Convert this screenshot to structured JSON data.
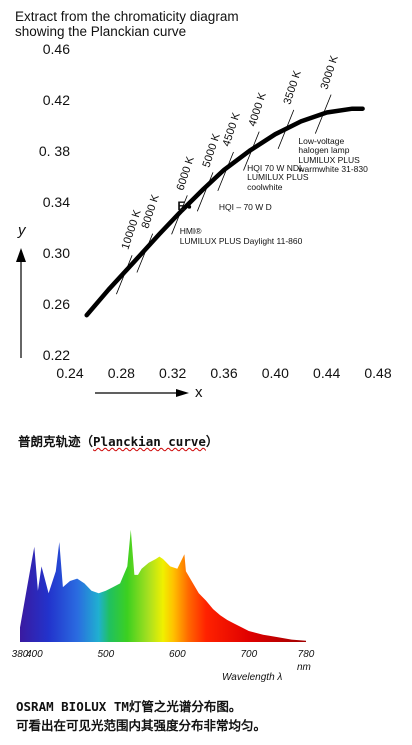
{
  "chart_data": [
    {
      "type": "line",
      "title": "Extract from the chromaticity diagram\nshowing the Planckian curve",
      "xlabel": "x",
      "ylabel": "y",
      "xlim": [
        0.24,
        0.48
      ],
      "ylim": [
        0.22,
        0.46
      ],
      "xticks": [
        "0.24",
        "0.28",
        "0.32",
        "0.36",
        "0.40",
        "0.44",
        "0.48"
      ],
      "yticks": [
        "0.46",
        "0.42",
        "0. 38",
        "0.34",
        "0.30",
        "0.26",
        "0.22"
      ],
      "series": [
        {
          "values_xy": [
            [
              0.253,
              0.252
            ],
            [
              0.27,
              0.272
            ],
            [
              0.29,
              0.294
            ],
            [
              0.31,
              0.316
            ],
            [
              0.327,
              0.334
            ],
            [
              0.344,
              0.351
            ],
            [
              0.36,
              0.366
            ],
            [
              0.38,
              0.381
            ],
            [
              0.4,
              0.394
            ],
            [
              0.42,
              0.404
            ],
            [
              0.44,
              0.411
            ],
            [
              0.46,
              0.414
            ],
            [
              0.468,
              0.414
            ]
          ]
        }
      ],
      "cct_markers": [
        {
          "label": "10000 K",
          "x": 0.282,
          "y": 0.283
        },
        {
          "label": "8000 K",
          "x": 0.298,
          "y": 0.3
        },
        {
          "label": "6000 K",
          "x": 0.325,
          "y": 0.33
        },
        {
          "label": "5000 K",
          "x": 0.345,
          "y": 0.348
        },
        {
          "label": "4500 K",
          "x": 0.361,
          "y": 0.364
        },
        {
          "label": "4000 K",
          "x": 0.381,
          "y": 0.38
        },
        {
          "label": "3500 K",
          "x": 0.408,
          "y": 0.397
        },
        {
          "label": "3000 K",
          "x": 0.437,
          "y": 0.409
        }
      ],
      "annotations": [
        {
          "text": "E",
          "x": 0.333,
          "y": 0.337
        },
        {
          "text": "HMI®\nLUMILUX PLUS Daylight 11-860",
          "x": 0.3255,
          "y": 0.321
        },
        {
          "text": "HQI – 70 W D",
          "x": 0.356,
          "y": 0.34
        },
        {
          "text": "HQI 70 W NDL\nLUMILUX PLUS\ncoolwhite",
          "x": 0.378,
          "y": 0.371
        },
        {
          "text": "Low-voltage\nhalogen lamp\nLUMILUX PLUS\nwarmwhite 31-830",
          "x": 0.418,
          "y": 0.392
        }
      ]
    },
    {
      "type": "area",
      "xlabel": "Wavelength λ",
      "xunit": "nm",
      "xlim": [
        380,
        780
      ],
      "xticks": [
        "380",
        "400",
        "500",
        "600",
        "700",
        "780"
      ],
      "x": [
        380,
        390,
        400,
        405,
        410,
        420,
        430,
        435,
        440,
        450,
        460,
        470,
        480,
        490,
        500,
        510,
        520,
        530,
        535,
        540,
        545,
        550,
        560,
        570,
        575,
        580,
        590,
        600,
        610,
        612,
        620,
        630,
        640,
        650,
        660,
        670,
        680,
        690,
        700,
        720,
        740,
        760,
        780
      ],
      "values": [
        0.12,
        0.45,
        0.78,
        0.42,
        0.62,
        0.4,
        0.58,
        0.82,
        0.45,
        0.5,
        0.52,
        0.48,
        0.42,
        0.4,
        0.42,
        0.45,
        0.48,
        0.62,
        0.92,
        0.55,
        0.55,
        0.6,
        0.65,
        0.68,
        0.7,
        0.68,
        0.62,
        0.6,
        0.72,
        0.58,
        0.5,
        0.4,
        0.34,
        0.27,
        0.22,
        0.18,
        0.15,
        0.12,
        0.09,
        0.06,
        0.04,
        0.02,
        0.01
      ]
    }
  ],
  "captions": {
    "planckian": "普朗克轨迹（",
    "planckian_en": "Planckian curve",
    "planckian_close": "）",
    "osram_line1": "OSRAM BIOLUX TM灯管之光谱分布图。",
    "osram_line2": "可看出在可见光范围内其强度分布非常均匀。"
  }
}
